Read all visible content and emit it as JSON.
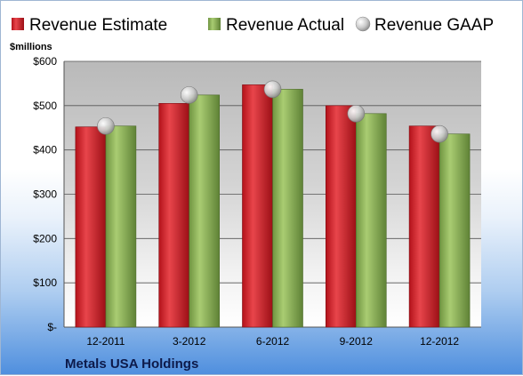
{
  "chart_data": {
    "type": "bar",
    "unit_label": "$millions",
    "company": "Metals USA Holdings",
    "categories": [
      "12-2011",
      "3-2012",
      "6-2012",
      "9-2012",
      "12-2012"
    ],
    "series": [
      {
        "name": "Revenue Estimate",
        "kind": "bar",
        "color": "#d9262c",
        "values": [
          452,
          505,
          547,
          500,
          454
        ]
      },
      {
        "name": "Revenue Actual",
        "kind": "bar",
        "color": "#8fb55a",
        "values": [
          454,
          524,
          537,
          482,
          436
        ]
      },
      {
        "name": "Revenue GAAP",
        "kind": "marker",
        "color": "#c8c8c8",
        "values": [
          454,
          524,
          537,
          482,
          436
        ]
      }
    ],
    "ylim": [
      0,
      600
    ],
    "y_ticks": [
      {
        "value": 0,
        "label": "$-"
      },
      {
        "value": 100,
        "label": "$100"
      },
      {
        "value": 200,
        "label": "$200"
      },
      {
        "value": 300,
        "label": "$300"
      },
      {
        "value": 400,
        "label": "$400"
      },
      {
        "value": 500,
        "label": "$500"
      },
      {
        "value": 600,
        "label": "$600"
      }
    ],
    "grid": true,
    "legend_position": "top"
  }
}
